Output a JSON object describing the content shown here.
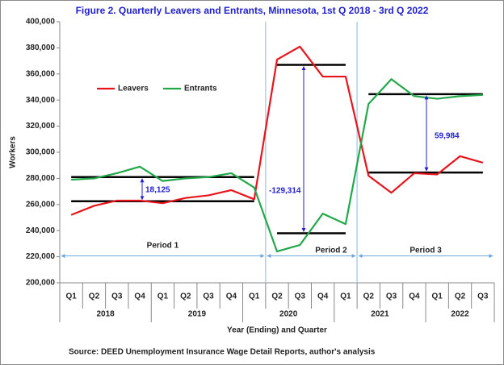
{
  "chart_data": {
    "type": "line",
    "title": "Figure 2. Quarterly Leavers and Entrants, Minnesota, 1st Q 2018 - 3rd Q 2022",
    "y_label": "Workers",
    "x_label": "Year (Ending) and Quarter",
    "source": "Source: DEED Unemployment Insurance Wage Detail Reports, author's analysis",
    "groups": [
      {
        "label": "2018",
        "categories": [
          "Q1",
          "Q2",
          "Q3",
          "Q4"
        ]
      },
      {
        "label": "2019",
        "categories": [
          "Q1",
          "Q2",
          "Q3",
          "Q4"
        ]
      },
      {
        "label": "2020",
        "categories": [
          "Q1",
          "Q2",
          "Q3",
          "Q4"
        ]
      },
      {
        "label": "2021",
        "categories": [
          "Q1",
          "Q2",
          "Q3",
          "Q4"
        ]
      },
      {
        "label": "2022",
        "categories": [
          "Q1",
          "Q2",
          "Q3"
        ]
      }
    ],
    "series": [
      {
        "name": "Leavers",
        "color": "#e8141c",
        "values": [
          252000,
          259000,
          263000,
          263000,
          261000,
          265000,
          267000,
          271000,
          264000,
          371000,
          381000,
          358000,
          358000,
          282000,
          269000,
          284000,
          283000,
          297000,
          292000
        ]
      },
      {
        "name": "Entrants",
        "color": "#22a84a",
        "values": [
          279000,
          280000,
          284000,
          289000,
          278000,
          280000,
          281000,
          284000,
          273000,
          224000,
          229000,
          253000,
          245000,
          337000,
          356000,
          343000,
          341000,
          343000,
          344000
        ]
      }
    ],
    "reference_lines": [
      262500,
      281000,
      367000,
      238000,
      344500,
      284500
    ],
    "periods": [
      "Period 1",
      "Period 2",
      "Period 3"
    ],
    "annotations": [
      "18,125",
      "-129,314",
      "59,984"
    ],
    "ylim": [
      200000,
      400000
    ],
    "yticks": [
      {
        "value": 200000,
        "label": "200,000"
      },
      {
        "value": 220000,
        "label": "220,000"
      },
      {
        "value": 240000,
        "label": "240,000"
      },
      {
        "value": 260000,
        "label": "260,000"
      },
      {
        "value": 280000,
        "label": "280,000"
      },
      {
        "value": 300000,
        "label": "300,000"
      },
      {
        "value": 320000,
        "label": "320,000"
      },
      {
        "value": 340000,
        "label": "340,000"
      },
      {
        "value": 360000,
        "label": "360,000"
      },
      {
        "value": 380000,
        "label": "380,000"
      },
      {
        "value": 400000,
        "label": "400,000"
      }
    ],
    "grid": false
  }
}
